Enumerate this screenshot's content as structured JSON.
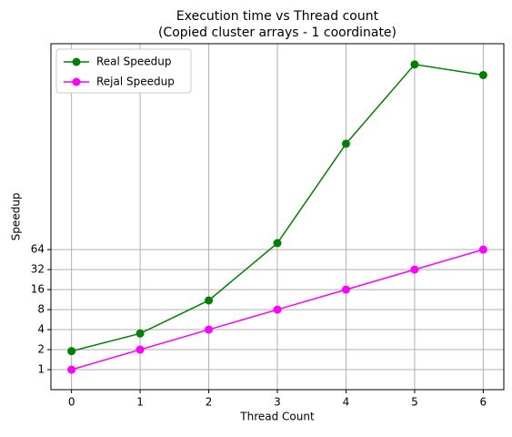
{
  "chart_data": {
    "type": "line",
    "title": "Execution time vs Thread count\n(Copied cluster arrays - 1 coordinate)",
    "x_label": "Thread Count",
    "y_label": "Speedup",
    "x": [
      0,
      1,
      2,
      3,
      4,
      5,
      6
    ],
    "series": [
      {
        "name": "Real Speedup",
        "color": "#008000",
        "values": [
          1.9,
          3.5,
          11,
          80,
          2500,
          39000,
          27000
        ]
      },
      {
        "name": "Rejal Speedup",
        "color": "#ff00ff",
        "values": [
          1,
          2,
          4,
          8,
          16,
          32,
          64
        ]
      }
    ],
    "xlim": [
      -0.3,
      6.3
    ],
    "xticks": [
      0,
      1,
      2,
      3,
      4,
      5,
      6
    ],
    "ylim": [
      0.5,
      80000
    ],
    "yticks": [
      1,
      2,
      4,
      8,
      16,
      32,
      64
    ],
    "y_scale": "log",
    "grid": true,
    "legend": "upper left"
  }
}
